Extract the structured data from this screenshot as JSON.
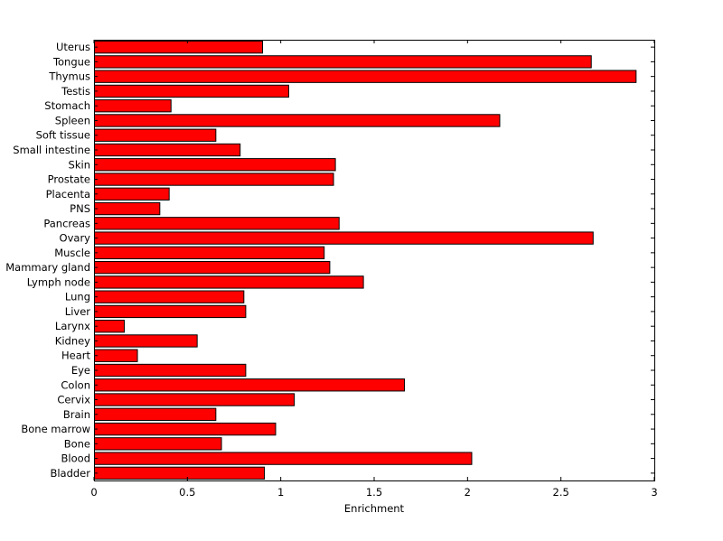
{
  "chart_data": {
    "type": "bar",
    "orientation": "horizontal",
    "categories": [
      "Uterus",
      "Tongue",
      "Thymus",
      "Testis",
      "Stomach",
      "Spleen",
      "Soft tissue",
      "Small intestine",
      "Skin",
      "Prostate",
      "Placenta",
      "PNS",
      "Pancreas",
      "Ovary",
      "Muscle",
      "Mammary gland",
      "Lymph node",
      "Lung",
      "Liver",
      "Larynx",
      "Kidney",
      "Heart",
      "Eye",
      "Colon",
      "Cervix",
      "Brain",
      "Bone marrow",
      "Bone",
      "Blood",
      "Bladder"
    ],
    "values": [
      0.9,
      2.66,
      2.9,
      1.04,
      0.41,
      2.17,
      0.65,
      0.78,
      1.29,
      1.28,
      0.4,
      0.35,
      1.31,
      2.67,
      1.23,
      1.26,
      1.44,
      0.8,
      0.81,
      0.16,
      0.55,
      0.23,
      0.81,
      1.66,
      1.07,
      0.65,
      0.97,
      0.68,
      2.02,
      0.91
    ],
    "title": "",
    "xlabel": "Enrichment",
    "ylabel": "",
    "xlim": [
      0,
      3
    ],
    "xticks": [
      "0",
      "0.5",
      "1",
      "1.5",
      "2",
      "2.5",
      "3"
    ],
    "grid": false,
    "bar_color": "#ff0000",
    "edge_color": "#000000"
  }
}
